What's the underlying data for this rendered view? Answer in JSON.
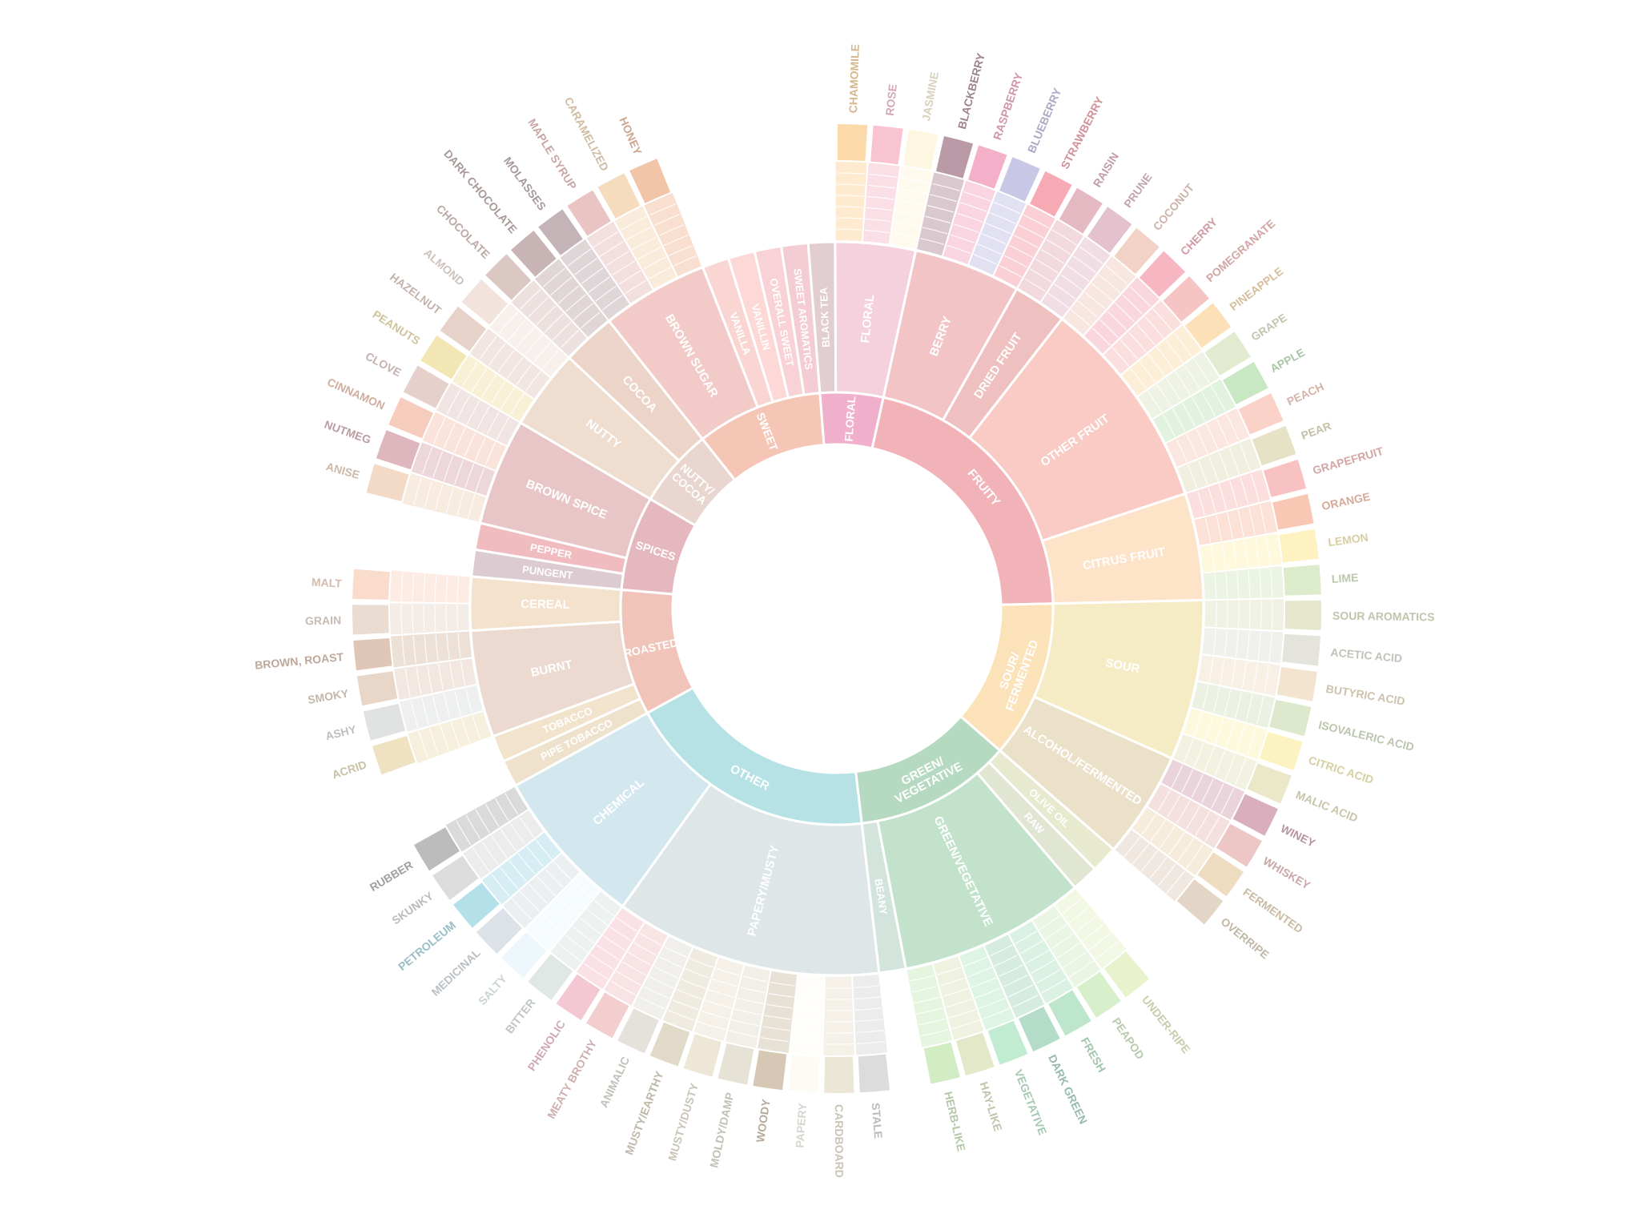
{
  "chart_data": {
    "type": "sunburst",
    "title": "",
    "tiers": [
      {
        "name": "FLORAL",
        "color": "#f0b0cc",
        "children": [
          {
            "name": "BLACK TEA",
            "color": "#e2cdd0"
          },
          {
            "name": "FLORAL",
            "color": "#f5d0dd",
            "children": [
              {
                "name": "CHAMOMILE",
                "color": "#fbd9a8"
              },
              {
                "name": "ROSE",
                "color": "#f8c4d2"
              },
              {
                "name": "JASMINE",
                "color": "#fdf6e0"
              }
            ]
          }
        ]
      },
      {
        "name": "FRUITY",
        "color": "#f2b3b8",
        "children": [
          {
            "name": "BERRY",
            "color": "#f3c4c6",
            "children": [
              {
                "name": "BLACKBERRY",
                "color": "#b99aa6"
              },
              {
                "name": "RASPBERRY",
                "color": "#f4b0c8"
              },
              {
                "name": "BLUEBERRY",
                "color": "#c8c8e6"
              },
              {
                "name": "STRAWBERRY",
                "color": "#f6aab4"
              }
            ]
          },
          {
            "name": "DRIED FRUIT",
            "color": "#efc0c0",
            "children": [
              {
                "name": "RAISIN",
                "color": "#e5b9c2"
              },
              {
                "name": "PRUNE",
                "color": "#e3c2cd"
              }
            ]
          },
          {
            "name": "OTHER FRUIT",
            "color": "#f9cbc4",
            "children": [
              {
                "name": "COCONUT",
                "color": "#f2d2c6"
              },
              {
                "name": "CHERRY",
                "color": "#f6b6c2"
              },
              {
                "name": "POMEGRANATE",
                "color": "#f6c4c2"
              },
              {
                "name": "PINEAPPLE",
                "color": "#fce0b8"
              },
              {
                "name": "GRAPE",
                "color": "#e2ead0"
              },
              {
                "name": "APPLE",
                "color": "#c8e8c4"
              },
              {
                "name": "PEACH",
                "color": "#fad2c8"
              },
              {
                "name": "PEAR",
                "color": "#e6e2c6"
              }
            ]
          },
          {
            "name": "CITRUS FRUIT",
            "color": "#fde3c8",
            "children": [
              {
                "name": "GRAPEFRUIT",
                "color": "#f8c2c2"
              },
              {
                "name": "ORANGE",
                "color": "#f9c8b4"
              },
              {
                "name": "LEMON",
                "color": "#fdf2c0"
              },
              {
                "name": "LIME",
                "color": "#dcebcc"
              }
            ]
          }
        ]
      },
      {
        "name": "SOUR/ FERMENTED",
        "color": "#fbe2b8",
        "children": [
          {
            "name": "SOUR",
            "color": "#f5ecc5",
            "children": [
              {
                "name": "SOUR AROMATICS",
                "color": "#e6e6cc"
              },
              {
                "name": "ACETIC ACID",
                "color": "#e4e4dc"
              },
              {
                "name": "BUTYRIC ACID",
                "color": "#f2e4ce"
              },
              {
                "name": "ISOVALERIC ACID",
                "color": "#dde8cc"
              },
              {
                "name": "CITRIC ACID",
                "color": "#fcf4c0"
              },
              {
                "name": "MALIC ACID",
                "color": "#eae8c8"
              }
            ]
          },
          {
            "name": "ALCOHOL/FERMENTED",
            "color": "#ebe0c8",
            "children": [
              {
                "name": "WINEY",
                "color": "#d9aebd"
              },
              {
                "name": "WHISKEY",
                "color": "#edc6c6"
              },
              {
                "name": "FERMENTED",
                "color": "#eedcc0"
              },
              {
                "name": "OVERRIPE",
                "color": "#e3d6c6"
              }
            ]
          }
        ]
      },
      {
        "name": "GREEN/ VEGETATIVE",
        "color": "#b6d9c2",
        "children": [
          {
            "name": "OLIVE OIL",
            "color": "#e8ead0"
          },
          {
            "name": "RAW",
            "color": "#e0e6d2"
          },
          {
            "name": "GREEN/VEGETATIVE",
            "color": "#c2e2cc",
            "children": [
              {
                "name": "UNDER-RIPE",
                "color": "#e8f2cc"
              },
              {
                "name": "PEAPOD",
                "color": "#d8efcc"
              },
              {
                "name": "FRESH",
                "color": "#bde6cc"
              },
              {
                "name": "DARK GREEN",
                "color": "#b4dcc8"
              },
              {
                "name": "VEGETATIVE",
                "color": "#c2ecd2"
              },
              {
                "name": "HAY-LIKE",
                "color": "#e2e8c8"
              },
              {
                "name": "HERB-LIKE",
                "color": "#d2ecc4"
              }
            ]
          },
          {
            "name": "BEANY",
            "color": "#d2e4dc"
          }
        ]
      },
      {
        "name": "OTHER",
        "color": "#b6e2e6",
        "children": [
          {
            "name": "PAPERY/MUSTY",
            "color": "#dee6e8",
            "children": [
              {
                "name": "STALE",
                "color": "#dcdcdc"
              },
              {
                "name": "CARDBOARD",
                "color": "#ece6d6"
              },
              {
                "name": "PAPERY",
                "color": "#fdfbf4"
              },
              {
                "name": "WOODY",
                "color": "#d6c8b4"
              },
              {
                "name": "MOLDY/DAMP",
                "color": "#e6e2d6"
              },
              {
                "name": "MUSTY/DUSTY",
                "color": "#eee6d6"
              },
              {
                "name": "MUSTY/EARTHY",
                "color": "#e2dac8"
              },
              {
                "name": "ANIMALIC",
                "color": "#e4e2da"
              },
              {
                "name": "MEATY BROTHY",
                "color": "#f2cece"
              },
              {
                "name": "PHENOLIC",
                "color": "#f4c8d2"
              }
            ]
          },
          {
            "name": "CHEMICAL",
            "color": "#d2e8ee",
            "children": [
              {
                "name": "BITTER",
                "color": "#dfe8e4"
              },
              {
                "name": "SALTY",
                "color": "#eef8fc"
              },
              {
                "name": "MEDICINAL",
                "color": "#dce2e8"
              },
              {
                "name": "PETROLEUM",
                "color": "#b4e0ea"
              },
              {
                "name": "SKUNKY",
                "color": "#dcdcdc"
              },
              {
                "name": "RUBBER",
                "color": "#bcbcbc"
              }
            ]
          }
        ]
      },
      {
        "name": "ROASTED",
        "color": "#f0c4b8",
        "children": [
          {
            "name": "PIPE TOBACCO",
            "color": "#efe2cc"
          },
          {
            "name": "TOBACCO",
            "color": "#f1e3cc"
          },
          {
            "name": "BURNT",
            "color": "#ecdad0",
            "children": [
              {
                "name": "ACRID",
                "color": "#eee2c2"
              },
              {
                "name": "ASHY",
                "color": "#e0e2e2"
              },
              {
                "name": "SMOKY",
                "color": "#e8d6c8"
              },
              {
                "name": "BROWN, ROAST",
                "color": "#dfc6b6"
              }
            ]
          },
          {
            "name": "CEREAL",
            "color": "#f4e2cc",
            "children": [
              {
                "name": "GRAIN",
                "color": "#ebdcd2"
              },
              {
                "name": "MALT",
                "color": "#fadccc"
              }
            ]
          }
        ]
      },
      {
        "name": "SPICES",
        "color": "#e5b8c0",
        "children": [
          {
            "name": "PUNGENT",
            "color": "#dccbd0"
          },
          {
            "name": "PEPPER",
            "color": "#f0bcc0"
          },
          {
            "name": "BROWN SPICE",
            "color": "#e8c6c8",
            "children": [
              {
                "name": "ANISE",
                "color": "#f2dac6"
              },
              {
                "name": "NUTMEG",
                "color": "#deb6be"
              },
              {
                "name": "CINNAMON",
                "color": "#f6ccbc"
              },
              {
                "name": "CLOVE",
                "color": "#e6d0cc"
              }
            ]
          }
        ]
      },
      {
        "name": "NUTTY/ COCOA",
        "color": "#e9d6d0",
        "children": [
          {
            "name": "NUTTY",
            "color": "#efddd0",
            "children": [
              {
                "name": "PEANUTS",
                "color": "#f2e6b4"
              },
              {
                "name": "HAZELNUT",
                "color": "#e6d2c8"
              },
              {
                "name": "ALMOND",
                "color": "#f2e4dc"
              }
            ]
          },
          {
            "name": "COCOA",
            "color": "#ecd4c8",
            "children": [
              {
                "name": "CHOCOLATE",
                "color": "#dcc8c2"
              },
              {
                "name": "DARK CHOCOLATE",
                "color": "#c8b4b4"
              }
            ]
          }
        ]
      },
      {
        "name": "SWEET",
        "color": "#f5c6b6",
        "children": [
          {
            "name": "BROWN SUGAR",
            "color": "#f2cac8",
            "children": [
              {
                "name": "MOLASSES",
                "color": "#c4b4b8"
              },
              {
                "name": "MAPLE SYRUP",
                "color": "#eac4c2"
              },
              {
                "name": "CARAMELIZED",
                "color": "#f6dcbe"
              },
              {
                "name": "HONEY",
                "color": "#f2c4a8"
              }
            ]
          },
          {
            "name": "VANILLA",
            "color": "#fad6d2"
          },
          {
            "name": "VANILLIN",
            "color": "#fcd8d6"
          },
          {
            "name": "OVERALL SWEET",
            "color": "#f8d2d6"
          },
          {
            "name": "SWEET AROMATICS",
            "color": "#f4ccd4"
          }
        ]
      }
    ]
  }
}
